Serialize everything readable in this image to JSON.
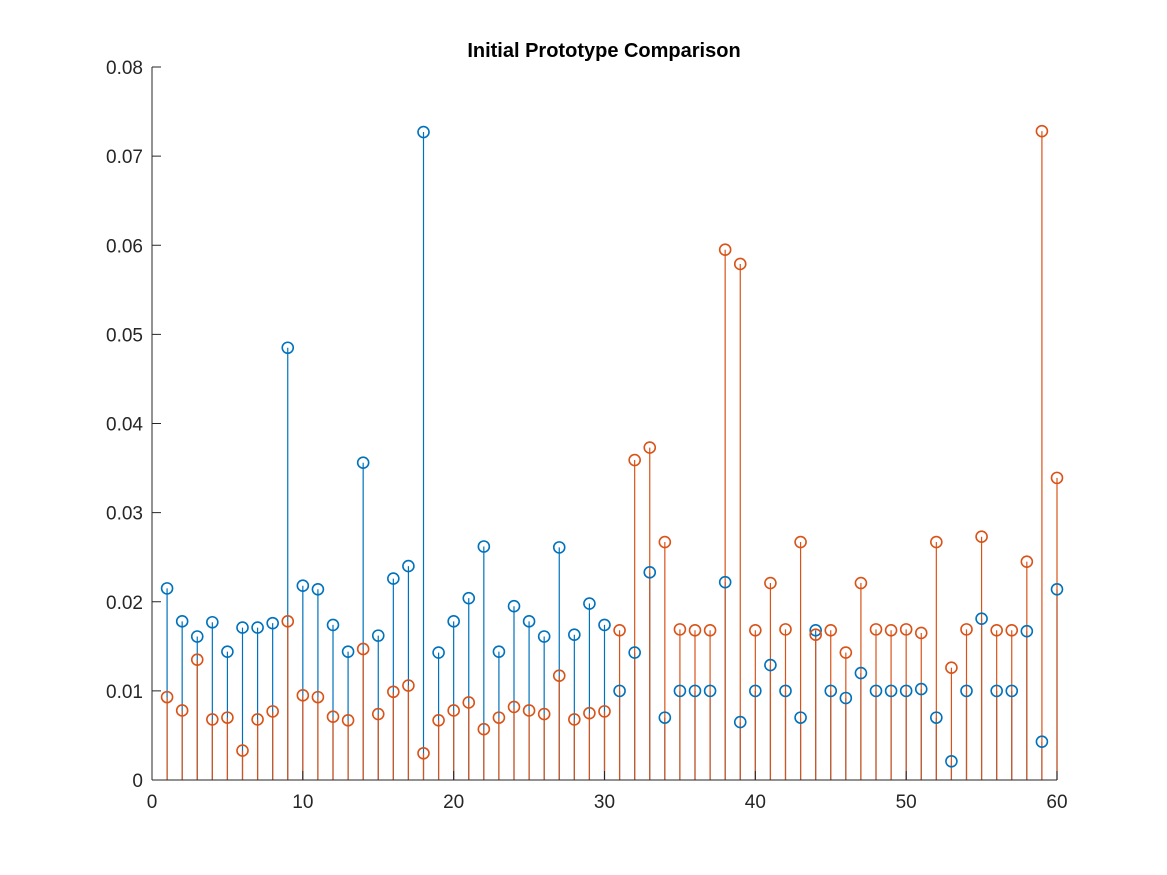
{
  "chart_data": {
    "type": "stem",
    "title": "Initial Prototype Comparison",
    "xlabel": "",
    "ylabel": "",
    "xlim": [
      0,
      60
    ],
    "ylim": [
      0,
      0.08
    ],
    "xticks": [
      0,
      10,
      20,
      30,
      40,
      50,
      60
    ],
    "xtick_labels": [
      "0",
      "10",
      "20",
      "30",
      "40",
      "50",
      "60"
    ],
    "yticks": [
      0,
      0.01,
      0.02,
      0.03,
      0.04,
      0.05,
      0.06,
      0.07,
      0.08
    ],
    "ytick_labels": [
      "0",
      "0.01",
      "0.02",
      "0.03",
      "0.04",
      "0.05",
      "0.06",
      "0.07",
      "0.08"
    ],
    "grid": false,
    "legend": "none",
    "x": [
      1,
      2,
      3,
      4,
      5,
      6,
      7,
      8,
      9,
      10,
      11,
      12,
      13,
      14,
      15,
      16,
      17,
      18,
      19,
      20,
      21,
      22,
      23,
      24,
      25,
      26,
      27,
      28,
      29,
      30,
      31,
      32,
      33,
      34,
      35,
      36,
      37,
      38,
      39,
      40,
      41,
      42,
      43,
      44,
      45,
      46,
      47,
      48,
      49,
      50,
      51,
      52,
      53,
      54,
      55,
      56,
      57,
      58,
      59,
      60
    ],
    "series": [
      {
        "color": "#0072BD",
        "marker": "circle",
        "values": [
          0.0215,
          0.0178,
          0.0161,
          0.0177,
          0.0144,
          0.0171,
          0.0171,
          0.0176,
          0.0485,
          0.0218,
          0.0214,
          0.0174,
          0.0144,
          0.0356,
          0.0162,
          0.0226,
          0.024,
          0.0727,
          0.0143,
          0.0178,
          0.0204,
          0.0262,
          0.0144,
          0.0195,
          0.0178,
          0.0161,
          0.0261,
          0.0163,
          0.0198,
          0.0174,
          0.01,
          0.0143,
          0.0233,
          0.007,
          0.01,
          0.01,
          0.01,
          0.0222,
          0.0065,
          0.01,
          0.0129,
          0.01,
          0.007,
          0.0168,
          0.01,
          0.0092,
          0.012,
          0.01,
          0.01,
          0.01,
          0.0102,
          0.007,
          0.0021,
          0.01,
          0.0181,
          0.01,
          0.01,
          0.0167,
          0.0043,
          0.0214
        ]
      },
      {
        "color": "#D95319",
        "marker": "circle",
        "values": [
          0.0093,
          0.0078,
          0.0135,
          0.0068,
          0.007,
          0.0033,
          0.0068,
          0.0077,
          0.0178,
          0.0095,
          0.0093,
          0.0071,
          0.0067,
          0.0147,
          0.0074,
          0.0099,
          0.0106,
          0.003,
          0.0067,
          0.0078,
          0.0087,
          0.0057,
          0.007,
          0.0082,
          0.0078,
          0.0074,
          0.0117,
          0.0068,
          0.0075,
          0.0077,
          0.0168,
          0.0359,
          0.0373,
          0.0267,
          0.0169,
          0.0168,
          0.0168,
          0.0595,
          0.0579,
          0.0168,
          0.0221,
          0.0169,
          0.0267,
          0.0163,
          0.0168,
          0.0143,
          0.0221,
          0.0169,
          0.0168,
          0.0169,
          0.0165,
          0.0267,
          0.0126,
          0.0169,
          0.0273,
          0.0168,
          0.0168,
          0.0245,
          0.0728,
          0.0339
        ]
      }
    ]
  }
}
